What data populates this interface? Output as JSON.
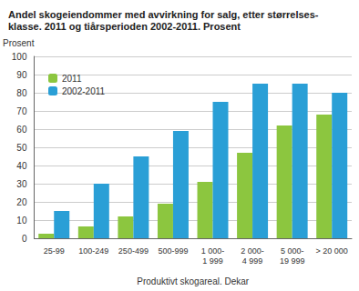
{
  "chart_data": {
    "type": "bar",
    "title": "Andel skogeiendommer med avvirkning for salg, etter størrelses-\nklasse. 2011 og tiårsperioden 2002-2011. Prosent",
    "y_label": "Prosent",
    "x_label": "Produktivt skogareal. Dekar",
    "categories": [
      "25-99",
      "100-249",
      "250-499",
      "500-999",
      "1 000-\n1 999",
      "2 000-\n4 999",
      "5 000-\n19 999",
      "> 20 000"
    ],
    "series": [
      {
        "name": "2011",
        "color": "#8cc63f",
        "values": [
          2.5,
          6.5,
          12,
          19,
          31,
          47,
          62,
          68
        ]
      },
      {
        "name": "2002-2011",
        "color": "#2a9fd6",
        "values": [
          15,
          30,
          45,
          59,
          75,
          85,
          85,
          80
        ]
      }
    ],
    "ylim": [
      0,
      100
    ],
    "yticks": [
      0,
      10,
      20,
      30,
      40,
      50,
      60,
      70,
      80,
      90,
      100
    ],
    "grid": true,
    "legend": "upper left"
  }
}
